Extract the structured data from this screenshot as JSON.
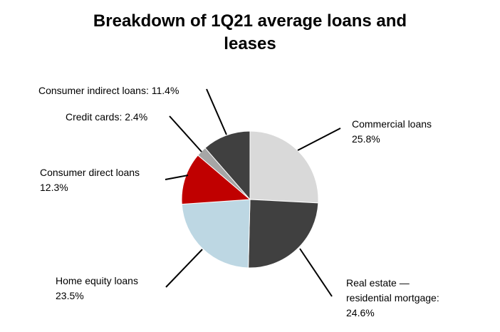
{
  "chart_data": {
    "type": "pie",
    "title_line1": "Breakdown of 1Q21 average loans and",
    "title_line2": "leases",
    "slices": [
      {
        "key": "commercial",
        "name": "Commercial loans",
        "value": 25.8,
        "value_label": "25.8%",
        "color": "#d9d9d9"
      },
      {
        "key": "real_estate",
        "name_line1": "Real estate —",
        "name_line2": "residential mortgage:",
        "value": 24.6,
        "value_label": "24.6%",
        "color": "#404040"
      },
      {
        "key": "home_equity",
        "name": "Home equity loans",
        "value": 23.5,
        "value_label": "23.5%",
        "color": "#bdd7e3"
      },
      {
        "key": "consumer_direct",
        "name": "Consumer direct loans",
        "value": 12.3,
        "value_label": "12.3%",
        "color": "#c00000"
      },
      {
        "key": "credit_cards",
        "name": "Credit cards: 2.4%",
        "value": 2.4,
        "color": "#a6a6a6"
      },
      {
        "key": "consumer_indirect",
        "name": "Consumer indirect loans: 11.4%",
        "value": 11.4,
        "color": "#404040"
      }
    ],
    "legend": "none"
  }
}
